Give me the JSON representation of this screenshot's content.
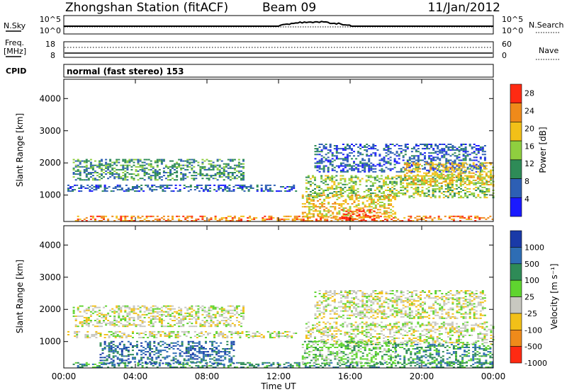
{
  "header": {
    "title": "Zhongshan Station (fitACF)",
    "beam": "Beam 09",
    "date": "11/Jan/2012"
  },
  "top_panels": {
    "nsky_label": "N.Sky",
    "nsky_ticks": [
      "10^5",
      "10^0"
    ],
    "nsearch_label": "N.Search",
    "nsearch_ticks": [
      "10^5",
      "10^0"
    ],
    "freq_label_1": "Freq.",
    "freq_label_2": "[MHz]",
    "freq_ticks": [
      "18",
      "8"
    ],
    "nave_label": "Nave",
    "nave_ticks": [
      "60",
      "0"
    ],
    "cpid_label": "CPID",
    "cpid_text": "normal (fast stereo) 153"
  },
  "chart_data": [
    {
      "type": "heatmap",
      "name": "power",
      "ylabel": "Slant Range [km]",
      "xlabel": "Time UT",
      "ylim": [
        180,
        4600
      ],
      "xlim": [
        0,
        24
      ],
      "yticks": [
        "1000",
        "2000",
        "3000",
        "4000"
      ],
      "colorbar_label": "Power [dB]",
      "colorbar_ticks": [
        "4",
        "8",
        "12",
        "16",
        "20",
        "24",
        "28"
      ],
      "colorbar_range": [
        0,
        30
      ],
      "colors": [
        "#1a1aff",
        "#2d5fb4",
        "#2e8b57",
        "#8fcf3f",
        "#f2c018",
        "#ef8a1a",
        "#ff2a12"
      ],
      "echo_bands": [
        {
          "t0": 0.2,
          "t1": 13.0,
          "r0": 1100,
          "r1": 1300,
          "level": 1
        },
        {
          "t0": 0.5,
          "t1": 24.0,
          "r0": 180,
          "r1": 320,
          "level": 5
        },
        {
          "t0": 0.5,
          "t1": 10.0,
          "r0": 1450,
          "r1": 2100,
          "level": 2
        },
        {
          "t0": 13.5,
          "t1": 24.0,
          "r0": 900,
          "r1": 1600,
          "level": 3
        },
        {
          "t0": 14.0,
          "t1": 23.5,
          "r0": 1700,
          "r1": 2600,
          "level": 1
        },
        {
          "t0": 13.3,
          "t1": 18.5,
          "r0": 300,
          "r1": 1000,
          "level": 4
        },
        {
          "t0": 15.5,
          "t1": 17.5,
          "r0": 200,
          "r1": 550,
          "level": 6
        },
        {
          "t0": 19.0,
          "t1": 24.0,
          "r0": 1300,
          "r1": 2000,
          "level": 4
        }
      ]
    },
    {
      "type": "heatmap",
      "name": "velocity",
      "ylabel": "Slant Range [km]",
      "xlabel": "Time UT",
      "ylim": [
        180,
        4600
      ],
      "xlim": [
        0,
        24
      ],
      "yticks": [
        "1000",
        "2000",
        "3000",
        "4000"
      ],
      "colorbar_label": "Velocity [m s⁻¹]",
      "colorbar_ticks": [
        "1000",
        "500",
        "100",
        "25",
        "-25",
        "-100",
        "-500",
        "-1000"
      ],
      "colors": [
        "#1a3aa8",
        "#2e6db4",
        "#2e8b57",
        "#5fd42f",
        "#c8c8c0",
        "#f2c018",
        "#ef8a1a",
        "#ff2a12"
      ],
      "echo_bands": [
        {
          "t0": 0.2,
          "t1": 13.0,
          "r0": 1100,
          "r1": 1300,
          "level": 4
        },
        {
          "t0": 0.5,
          "t1": 24.0,
          "r0": 180,
          "r1": 320,
          "level": 2
        },
        {
          "t0": 0.5,
          "t1": 10.0,
          "r0": 1450,
          "r1": 2100,
          "level": 4
        },
        {
          "t0": 2.0,
          "t1": 9.5,
          "r0": 300,
          "r1": 1000,
          "level": 1
        },
        {
          "t0": 13.5,
          "t1": 24.0,
          "r0": 900,
          "r1": 1600,
          "level": 4
        },
        {
          "t0": 14.0,
          "t1": 23.5,
          "r0": 1700,
          "r1": 2600,
          "level": 4
        },
        {
          "t0": 13.3,
          "t1": 18.5,
          "r0": 300,
          "r1": 1000,
          "level": 3
        },
        {
          "t0": 18.5,
          "t1": 24.0,
          "r0": 300,
          "r1": 900,
          "level": 2
        }
      ]
    }
  ],
  "time_axis": {
    "label": "Time UT",
    "ticks": [
      "00:00",
      "04:00",
      "08:00",
      "12:00",
      "16:00",
      "20:00",
      "00:00"
    ]
  }
}
